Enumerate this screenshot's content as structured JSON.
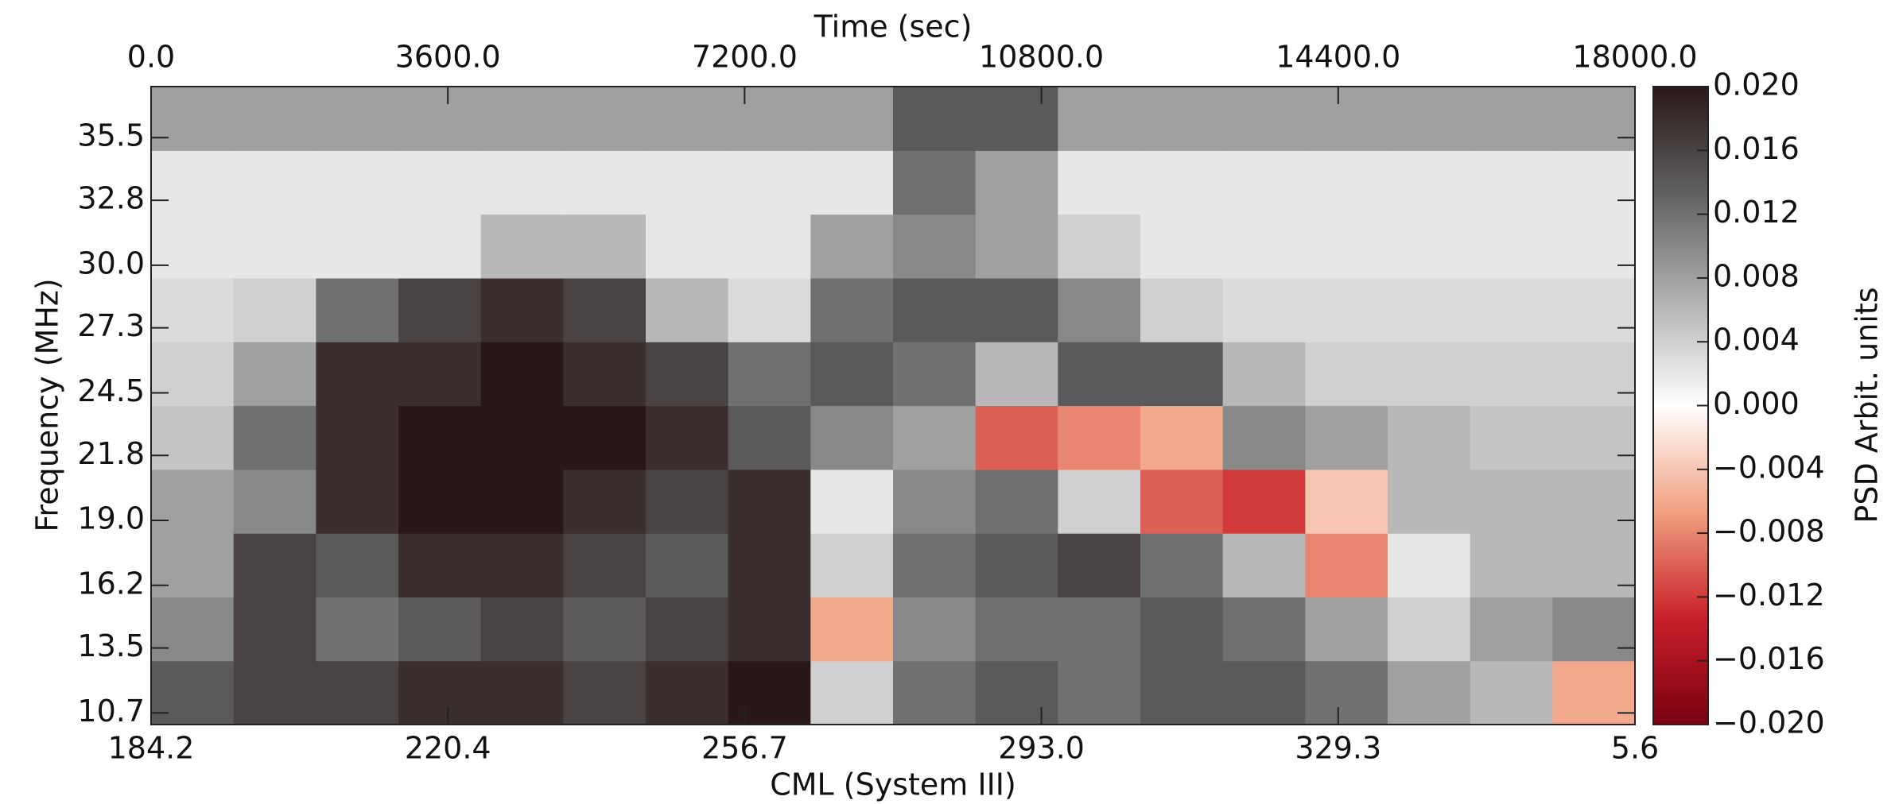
{
  "chart_data": {
    "type": "heatmap",
    "x_label": "Time (sec)",
    "x2_label": "CML (System III)",
    "y_label": "Frequency (MHz)",
    "colorbar_label": "PSD Arbit. units",
    "xlim": [
      0,
      18000
    ],
    "xticks": [
      {
        "value": 0,
        "label": "0.0"
      },
      {
        "value": 3600,
        "label": "3600.0"
      },
      {
        "value": 7200,
        "label": "7200.0"
      },
      {
        "value": 10800,
        "label": "10800.0"
      },
      {
        "value": 14400,
        "label": "14400.0"
      },
      {
        "value": 18000,
        "label": "18000.0"
      }
    ],
    "x2_ticklabels": [
      "184.2",
      "220.4",
      "256.7",
      "293.0",
      "329.3",
      "5.6"
    ],
    "ylim": [
      10.2,
      37.7
    ],
    "yticks": [
      10.7,
      13.5,
      16.2,
      {
        "value": 19,
        "label": "19.0"
      },
      21.8,
      24.5,
      27.3,
      {
        "value": 30,
        "label": "30.0"
      },
      32.8,
      35.5
    ],
    "x_edges": [
      0,
      1000,
      2000,
      3000,
      4000,
      5000,
      6000,
      7000,
      8000,
      9000,
      10000,
      11000,
      12000,
      13000,
      14000,
      15000,
      16000,
      17000,
      18000
    ],
    "y_edges": [
      10.2,
      12.95,
      15.7,
      18.45,
      21.2,
      23.95,
      26.7,
      29.45,
      32.2,
      34.95,
      37.7
    ],
    "z": [
      [
        0.014,
        0.016,
        0.016,
        0.018,
        0.018,
        0.016,
        0.018,
        0.02,
        0.004,
        0.012,
        0.014,
        0.012,
        0.014,
        0.014,
        0.012,
        0.008,
        0.006,
        -0.006
      ],
      [
        0.01,
        0.016,
        0.012,
        0.014,
        0.016,
        0.014,
        0.016,
        0.018,
        -0.006,
        0.01,
        0.012,
        0.012,
        0.014,
        0.012,
        0.008,
        0.004,
        0.008,
        0.01
      ],
      [
        0.008,
        0.016,
        0.014,
        0.018,
        0.018,
        0.016,
        0.014,
        0.018,
        0.004,
        0.012,
        0.014,
        0.016,
        0.012,
        0.006,
        -0.008,
        0.002,
        0.006,
        0.006
      ],
      [
        0.008,
        0.01,
        0.018,
        0.02,
        0.02,
        0.018,
        0.016,
        0.018,
        0.002,
        0.01,
        0.012,
        0.004,
        -0.01,
        -0.012,
        -0.004,
        0.006,
        0.006,
        0.006
      ],
      [
        0.005,
        0.012,
        0.018,
        0.02,
        0.02,
        0.02,
        0.018,
        0.014,
        0.01,
        0.008,
        -0.01,
        -0.008,
        -0.006,
        0.01,
        0.008,
        0.006,
        0.005,
        0.005
      ],
      [
        0.004,
        0.008,
        0.018,
        0.018,
        0.02,
        0.018,
        0.016,
        0.012,
        0.014,
        0.012,
        0.006,
        0.014,
        0.014,
        0.006,
        0.004,
        0.004,
        0.004,
        0.004
      ],
      [
        0.003,
        0.004,
        0.012,
        0.016,
        0.018,
        0.016,
        0.006,
        0.003,
        0.012,
        0.014,
        0.014,
        0.01,
        0.004,
        0.003,
        0.003,
        0.003,
        0.003,
        0.003
      ],
      [
        0.002,
        0.002,
        0.002,
        0.002,
        0.006,
        0.006,
        0.002,
        0.002,
        0.008,
        0.01,
        0.008,
        0.004,
        0.002,
        0.002,
        0.002,
        0.002,
        0.002,
        0.002
      ],
      [
        0.002,
        0.002,
        0.002,
        0.002,
        0.002,
        0.002,
        0.002,
        0.002,
        0.002,
        0.012,
        0.008,
        0.002,
        0.002,
        0.002,
        0.002,
        0.002,
        0.002,
        0.002
      ],
      [
        0.008,
        0.008,
        0.008,
        0.008,
        0.008,
        0.008,
        0.008,
        0.008,
        0.008,
        0.014,
        0.014,
        0.008,
        0.008,
        0.008,
        0.008,
        0.008,
        0.008,
        0.008
      ]
    ],
    "colorbar": {
      "lim": [
        -0.02,
        0.02
      ],
      "colors": [
        "#7a0010",
        "#c8202a",
        "#f0a080",
        "#ffffff",
        "#b0b0b0",
        "#606060",
        "#2a1818"
      ],
      "ticks": [
        {
          "value": 0.02,
          "label": "0.020"
        },
        {
          "value": 0.016,
          "label": "0.016"
        },
        {
          "value": 0.012,
          "label": "0.012"
        },
        {
          "value": 0.008,
          "label": "0.008"
        },
        {
          "value": 0.004,
          "label": "0.004"
        },
        {
          "value": 0,
          "label": "0.000"
        },
        {
          "value": -0.004,
          "label": "−0.004"
        },
        {
          "value": -0.008,
          "label": "−0.008"
        },
        {
          "value": -0.012,
          "label": "−0.012"
        },
        {
          "value": -0.016,
          "label": "−0.016"
        },
        {
          "value": -0.02,
          "label": "−0.020"
        }
      ]
    }
  }
}
